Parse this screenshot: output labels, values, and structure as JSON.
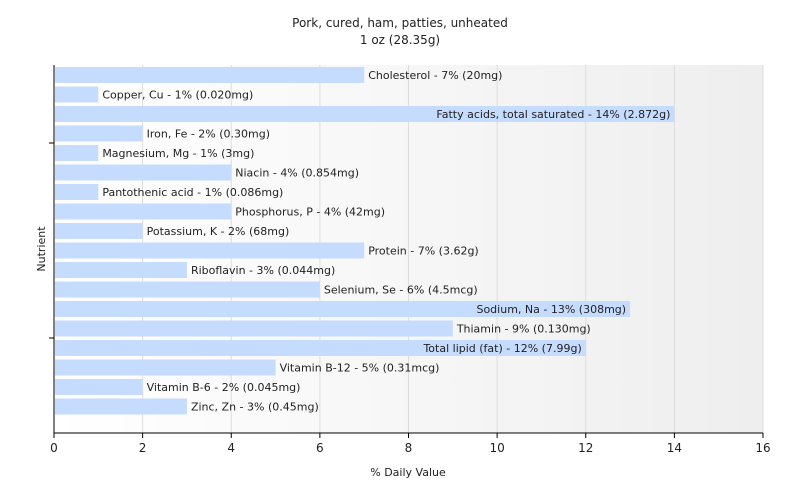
{
  "chart_data": {
    "type": "bar",
    "orientation": "horizontal",
    "title": "Pork, cured, ham, patties, unheated",
    "subtitle": "1 oz (28.35g)",
    "xlabel": "% Daily Value",
    "ylabel": "Nutrient",
    "xlim": [
      0,
      16
    ],
    "xticks": [
      0,
      2,
      4,
      6,
      8,
      10,
      12,
      14,
      16
    ],
    "grid": true,
    "bar_color": "#c6dcff",
    "categories": [
      "Cholesterol",
      "Copper, Cu",
      "Fatty acids, total saturated",
      "Iron, Fe",
      "Magnesium, Mg",
      "Niacin",
      "Pantothenic acid",
      "Phosphorus, P",
      "Potassium, K",
      "Protein",
      "Riboflavin",
      "Selenium, Se",
      "Sodium, Na",
      "Thiamin",
      "Total lipid (fat)",
      "Vitamin B-12",
      "Vitamin B-6",
      "Zinc, Zn"
    ],
    "values": [
      7,
      1,
      14,
      2,
      1,
      4,
      1,
      4,
      2,
      7,
      3,
      6,
      13,
      9,
      12,
      5,
      2,
      3
    ],
    "labels": [
      "Cholesterol - 7% (20mg)",
      "Copper, Cu - 1% (0.020mg)",
      "Fatty acids, total saturated - 14% (2.872g)",
      "Iron, Fe - 2% (0.30mg)",
      "Magnesium, Mg - 1% (3mg)",
      "Niacin - 4% (0.854mg)",
      "Pantothenic acid - 1% (0.086mg)",
      "Phosphorus, P - 4% (42mg)",
      "Potassium, K - 2% (68mg)",
      "Protein - 7% (3.62g)",
      "Riboflavin - 3% (0.044mg)",
      "Selenium, Se - 6% (4.5mcg)",
      "Sodium, Na - 13% (308mg)",
      "Thiamin - 9% (0.130mg)",
      "Total lipid (fat) - 12% (7.99g)",
      "Vitamin B-12 - 5% (0.31mcg)",
      "Vitamin B-6 - 2% (0.045mg)",
      "Zinc, Zn - 3% (0.45mg)"
    ]
  }
}
